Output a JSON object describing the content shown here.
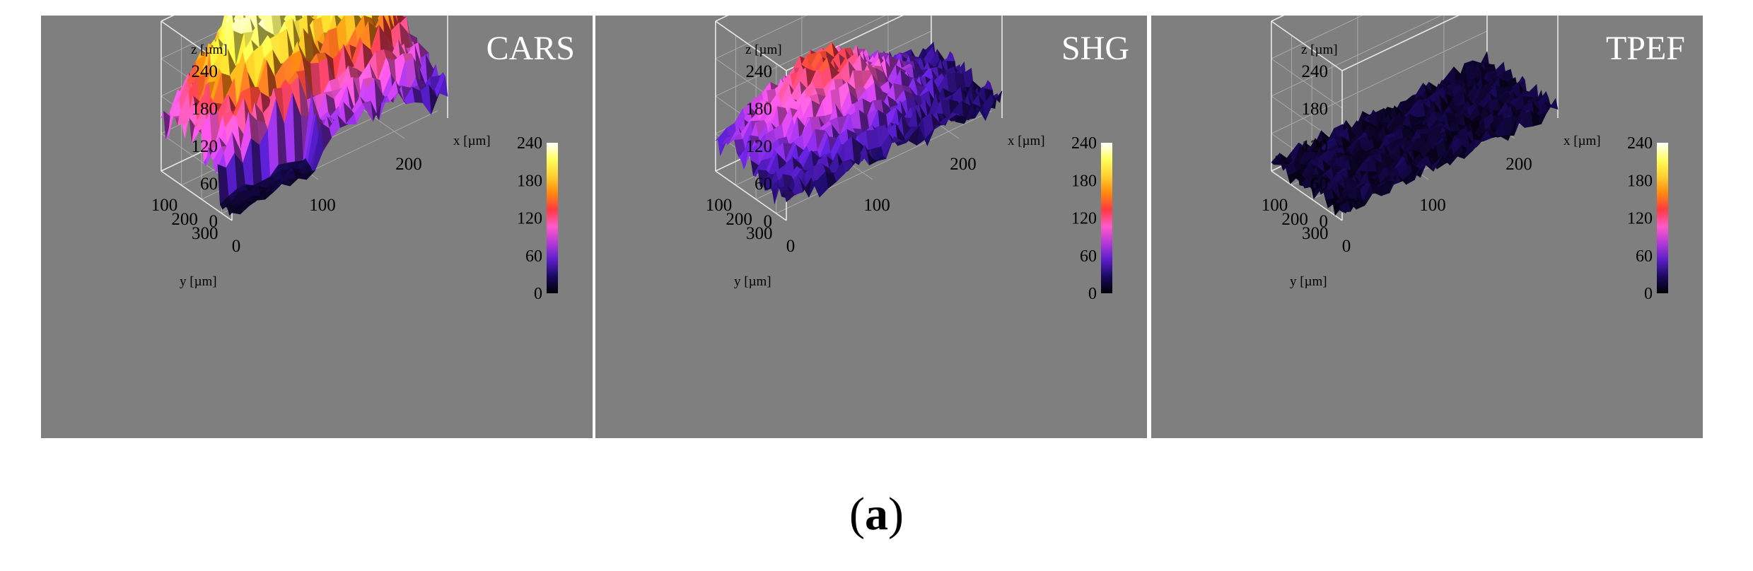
{
  "chart_data": [
    {
      "type": "surface3d",
      "title": "CARS",
      "zlabel": "z [µm]",
      "xlabel": "x [µm]",
      "ylabel": "y [µm]",
      "z_ticks": [
        "0",
        "60",
        "120",
        "180",
        "240"
      ],
      "x_ticks": [
        "0",
        "100",
        "200"
      ],
      "y_ticks": [
        "100",
        "200",
        "300"
      ],
      "colorbar_ticks": [
        "0",
        "60",
        "120",
        "180",
        "240"
      ],
      "zlim": [
        0,
        240
      ],
      "xlim": [
        0,
        250
      ],
      "ylim": [
        0,
        350
      ],
      "mean_height": 120,
      "height_range": [
        0,
        225
      ]
    },
    {
      "type": "surface3d",
      "title": "SHG",
      "zlabel": "z [µm]",
      "xlabel": "x [µm]",
      "ylabel": "y [µm]",
      "z_ticks": [
        "0",
        "60",
        "120",
        "180",
        "240"
      ],
      "x_ticks": [
        "0",
        "100",
        "200"
      ],
      "y_ticks": [
        "100",
        "200",
        "300"
      ],
      "colorbar_ticks": [
        "0",
        "60",
        "120",
        "180",
        "240"
      ],
      "zlim": [
        0,
        240
      ],
      "xlim": [
        0,
        250
      ],
      "ylim": [
        0,
        350
      ],
      "mean_height": 60,
      "height_range": [
        10,
        140
      ]
    },
    {
      "type": "surface3d",
      "title": "TPEF",
      "zlabel": "z [µm]",
      "xlabel": "x [µm]",
      "ylabel": "y [µm]",
      "z_ticks": [
        "0",
        "60",
        "120",
        "180",
        "240"
      ],
      "x_ticks": [
        "0",
        "100",
        "200"
      ],
      "y_ticks": [
        "100",
        "200",
        "300"
      ],
      "colorbar_ticks": [
        "0",
        "60",
        "120",
        "180",
        "240"
      ],
      "zlim": [
        0,
        240
      ],
      "xlim": [
        0,
        250
      ],
      "ylim": [
        0,
        350
      ],
      "mean_height": 15,
      "height_range": [
        0,
        35
      ]
    }
  ],
  "colormap": [
    "#000000",
    "#1a0a5e",
    "#5a1ec8",
    "#b43ad8",
    "#ff5ac8",
    "#ff3a40",
    "#ff8a10",
    "#ffd030",
    "#ffff60",
    "#ffffff"
  ],
  "caption": {
    "open": "(",
    "label": "a",
    "close": ")"
  }
}
